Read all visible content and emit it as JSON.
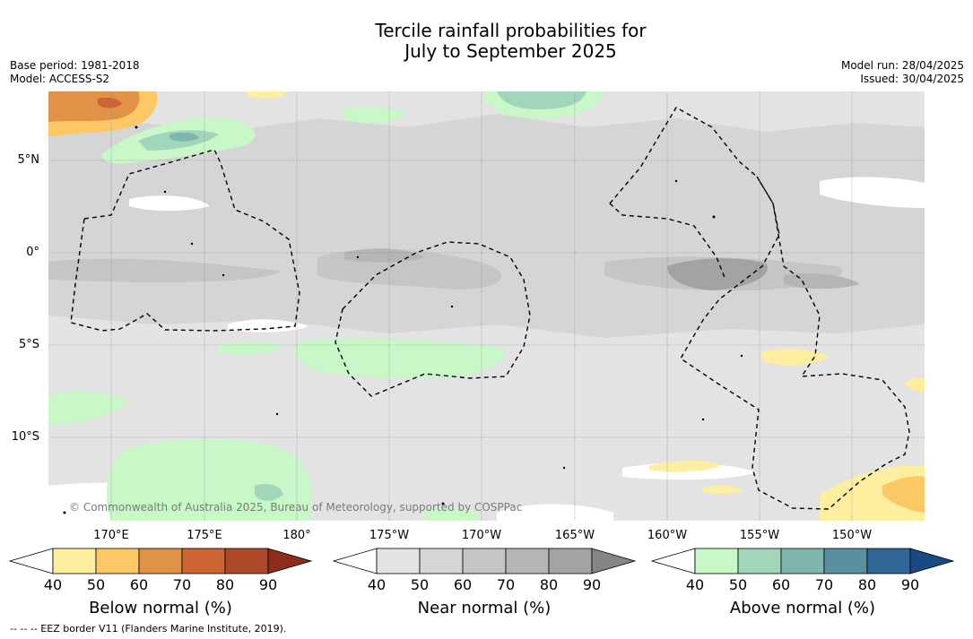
{
  "title": {
    "line1": "Tercile rainfall probabilities for",
    "line2": "July to September 2025"
  },
  "meta_left": {
    "base_period": "Base period: 1981-2018",
    "model": "Model: ACCESS-S2"
  },
  "meta_right": {
    "model_run": "Model run: 28/04/2025",
    "issued": "Issued: 30/04/2025"
  },
  "map": {
    "lat_labels": [
      "5°N",
      "0°",
      "5°S",
      "10°S"
    ],
    "lon_labels": [
      "170°E",
      "175°E",
      "180°",
      "175°W",
      "170°W",
      "165°W",
      "160°W",
      "155°W",
      "150°W"
    ],
    "copyright": "© Commonwealth of Australia 2025, Bureau of Meteorology, supported by COSPPac"
  },
  "colorbars": [
    {
      "title": "Below normal (%)",
      "ticks": [
        "40",
        "50",
        "60",
        "70",
        "80",
        "90"
      ],
      "colors": [
        "#ffffff",
        "#feeea0",
        "#fcc866",
        "#e09246",
        "#cc6434",
        "#ad4828",
        "#8c2e1a"
      ]
    },
    {
      "title": "Near normal (%)",
      "ticks": [
        "40",
        "50",
        "60",
        "70",
        "80",
        "90"
      ],
      "colors": [
        "#ffffff",
        "#e3e3e3",
        "#d5d5d5",
        "#c5c5c5",
        "#b5b5b5",
        "#a3a3a3",
        "#858585"
      ]
    },
    {
      "title": "Above normal (%)",
      "ticks": [
        "40",
        "50",
        "60",
        "70",
        "80",
        "90"
      ],
      "colors": [
        "#ffffff",
        "#c8f7c8",
        "#a2d6bb",
        "#7eb6ae",
        "#5a8fa0",
        "#336698",
        "#1a4a86"
      ]
    }
  ],
  "footnote": "-- -- -- EEZ border V11 (Flanders Marine Institute, 2019)."
}
